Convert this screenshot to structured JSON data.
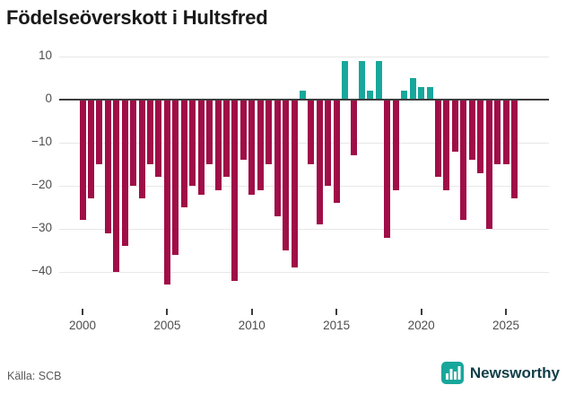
{
  "title": "Födelseöverskott i Hultsfred",
  "source": "Källa: SCB",
  "brand": {
    "name": "Newsworthy"
  },
  "chart_data": {
    "type": "bar",
    "title": "Födelseöverskott i Hultsfred",
    "x_unit": "half-year",
    "categories": [
      "2000 H1",
      "2000 H2",
      "2001 H1",
      "2001 H2",
      "2002 H1",
      "2002 H2",
      "2003 H1",
      "2003 H2",
      "2004 H1",
      "2004 H2",
      "2005 H1",
      "2005 H2",
      "2006 H1",
      "2006 H2",
      "2007 H1",
      "2007 H2",
      "2008 H1",
      "2008 H2",
      "2009 H1",
      "2009 H2",
      "2010 H1",
      "2010 H2",
      "2011 H1",
      "2011 H2",
      "2012 H1",
      "2012 H2",
      "2013 H1",
      "2013 H2",
      "2014 H1",
      "2014 H2",
      "2015 H1",
      "2015 H2",
      "2016 H1",
      "2016 H2",
      "2017 H1",
      "2017 H2",
      "2018 H1",
      "2018 H2",
      "2019 H1",
      "2019 H2",
      "2020 H1",
      "2020 H2",
      "2021 H1",
      "2021 H2",
      "2022 H1",
      "2022 H2",
      "2023 H1",
      "2023 H2",
      "2024 H1",
      "2024 H2",
      "2025 H1",
      "2025 H2"
    ],
    "values": [
      -28,
      -23,
      -15,
      -31,
      -40,
      -34,
      -20,
      -23,
      -15,
      -18,
      -43,
      -36,
      -25,
      -20,
      -22,
      -15,
      -21,
      -18,
      -42,
      -14,
      -22,
      -21,
      -15,
      -27,
      -35,
      -39,
      2,
      -15,
      -29,
      -20,
      -24,
      9,
      -13,
      9,
      2,
      9,
      -32,
      -21,
      2,
      5,
      3,
      3,
      -18,
      -21,
      -12,
      -28,
      -14,
      -17,
      -30,
      -15,
      -15,
      -23
    ],
    "colors": {
      "positive": "#18a79b",
      "negative": "#a00e47"
    },
    "y_ticks": [
      10,
      0,
      -10,
      -20,
      -30,
      -40
    ],
    "y_tick_labels": [
      "10",
      "0",
      "−10",
      "−20",
      "−30",
      "−40"
    ],
    "x_ticks": [
      2000,
      2005,
      2010,
      2015,
      2020,
      2025
    ],
    "ylim": [
      -45,
      12
    ],
    "grid": true,
    "legend": "none"
  }
}
